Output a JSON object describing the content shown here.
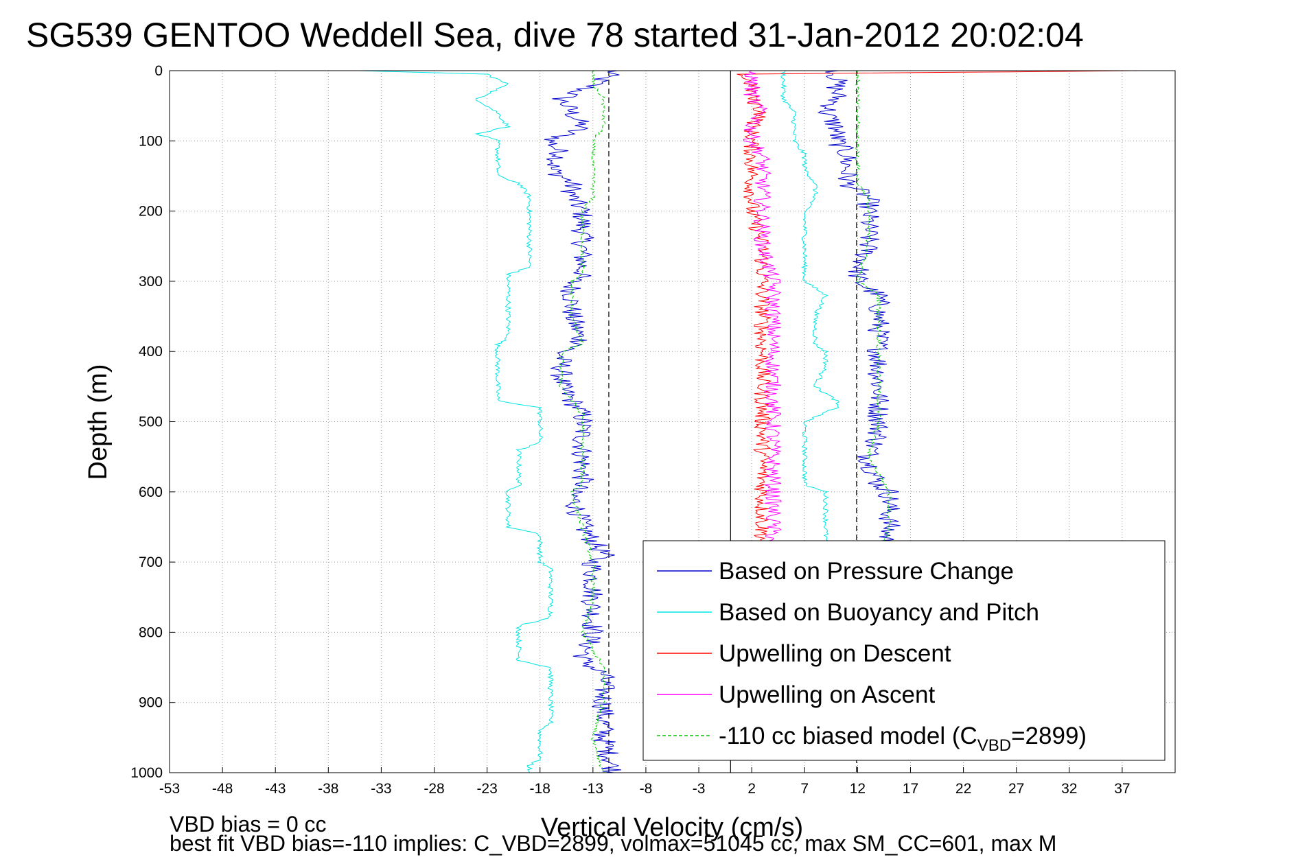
{
  "chart_data": {
    "type": "line",
    "title": "SG539 GENTOO Weddell Sea, dive 78 started 31-Jan-2012 20:02:04",
    "xlabel": "Vertical Velocity (cm/s)",
    "ylabel": "Depth (m)",
    "xlim": [
      -53,
      42
    ],
    "ylim": [
      1000,
      0
    ],
    "y_reversed": true,
    "grid": true,
    "x_ticks": [
      -53,
      -48,
      -43,
      -38,
      -33,
      -28,
      -23,
      -18,
      -13,
      -8,
      -3,
      2,
      7,
      12,
      17,
      22,
      27,
      32,
      37
    ],
    "y_ticks": [
      0,
      100,
      200,
      300,
      400,
      500,
      600,
      700,
      800,
      900,
      1000
    ],
    "legend_position": "lower-right",
    "reference_lines": [
      {
        "x": -11.5,
        "style": "dashed",
        "color": "#000000"
      },
      {
        "x": 0,
        "style": "solid",
        "color": "#000000"
      },
      {
        "x": 11.9,
        "style": "dashed",
        "color": "#000000"
      }
    ],
    "series": [
      {
        "name": "Based on Pressure Change",
        "color": "#0000cc",
        "style": "solid",
        "descent": [
          [
            0,
            -11
          ],
          [
            20,
            -13
          ],
          [
            40,
            -16
          ],
          [
            60,
            -15
          ],
          [
            80,
            -14
          ],
          [
            100,
            -17
          ],
          [
            120,
            -16
          ],
          [
            140,
            -17
          ],
          [
            160,
            -15
          ],
          [
            180,
            -15
          ],
          [
            200,
            -14
          ],
          [
            250,
            -14
          ],
          [
            290,
            -14
          ],
          [
            300,
            -15
          ],
          [
            350,
            -15
          ],
          [
            390,
            -14
          ],
          [
            400,
            -16
          ],
          [
            450,
            -16
          ],
          [
            490,
            -14
          ],
          [
            500,
            -14
          ],
          [
            550,
            -14
          ],
          [
            590,
            -14
          ],
          [
            600,
            -15
          ],
          [
            650,
            -14
          ],
          [
            690,
            -12
          ],
          [
            700,
            -13
          ],
          [
            750,
            -13
          ],
          [
            800,
            -13
          ],
          [
            840,
            -14
          ],
          [
            860,
            -12
          ],
          [
            900,
            -12
          ],
          [
            950,
            -12
          ],
          [
            1000,
            -11
          ]
        ],
        "ascent": [
          [
            0,
            10
          ],
          [
            20,
            10
          ],
          [
            40,
            10
          ],
          [
            60,
            9
          ],
          [
            80,
            10
          ],
          [
            100,
            10
          ],
          [
            120,
            11
          ],
          [
            140,
            11
          ],
          [
            160,
            11
          ],
          [
            180,
            13
          ],
          [
            200,
            13
          ],
          [
            250,
            13
          ],
          [
            290,
            12
          ],
          [
            300,
            12
          ],
          [
            320,
            14
          ],
          [
            350,
            14
          ],
          [
            390,
            14
          ],
          [
            420,
            14
          ],
          [
            450,
            14
          ],
          [
            490,
            14
          ],
          [
            500,
            14
          ],
          [
            520,
            14
          ],
          [
            550,
            13
          ],
          [
            590,
            14
          ],
          [
            600,
            15
          ],
          [
            620,
            15
          ],
          [
            650,
            15
          ],
          [
            700,
            14
          ]
        ]
      },
      {
        "name": "Based on Buoyancy and Pitch",
        "color": "#00e5e5",
        "style": "solid",
        "descent": [
          [
            0,
            -35
          ],
          [
            5,
            -23
          ],
          [
            20,
            -21
          ],
          [
            40,
            -24
          ],
          [
            60,
            -22
          ],
          [
            80,
            -21
          ],
          [
            90,
            -24
          ],
          [
            100,
            -22
          ],
          [
            120,
            -22
          ],
          [
            150,
            -22
          ],
          [
            160,
            -20
          ],
          [
            180,
            -19
          ],
          [
            200,
            -19
          ],
          [
            250,
            -19
          ],
          [
            280,
            -19
          ],
          [
            290,
            -21
          ],
          [
            300,
            -21
          ],
          [
            350,
            -21
          ],
          [
            380,
            -21
          ],
          [
            390,
            -22
          ],
          [
            400,
            -22
          ],
          [
            450,
            -22
          ],
          [
            470,
            -22
          ],
          [
            480,
            -18
          ],
          [
            500,
            -18
          ],
          [
            530,
            -18
          ],
          [
            540,
            -20
          ],
          [
            550,
            -20
          ],
          [
            590,
            -20
          ],
          [
            600,
            -21
          ],
          [
            650,
            -21
          ],
          [
            660,
            -18
          ],
          [
            700,
            -18
          ],
          [
            710,
            -17
          ],
          [
            750,
            -17
          ],
          [
            780,
            -17
          ],
          [
            790,
            -20
          ],
          [
            820,
            -20
          ],
          [
            840,
            -20
          ],
          [
            850,
            -17
          ],
          [
            880,
            -17
          ],
          [
            900,
            -17
          ],
          [
            930,
            -17
          ],
          [
            940,
            -18
          ],
          [
            980,
            -18
          ],
          [
            990,
            -19
          ],
          [
            1000,
            -19
          ]
        ],
        "ascent": [
          [
            0,
            5
          ],
          [
            20,
            5
          ],
          [
            40,
            5
          ],
          [
            60,
            6
          ],
          [
            80,
            6
          ],
          [
            100,
            6
          ],
          [
            120,
            7
          ],
          [
            140,
            7
          ],
          [
            160,
            8
          ],
          [
            180,
            8
          ],
          [
            200,
            7
          ],
          [
            250,
            7
          ],
          [
            290,
            7
          ],
          [
            300,
            7
          ],
          [
            320,
            9
          ],
          [
            350,
            8
          ],
          [
            390,
            8
          ],
          [
            400,
            9
          ],
          [
            420,
            9
          ],
          [
            450,
            8
          ],
          [
            470,
            10
          ],
          [
            480,
            10
          ],
          [
            500,
            7
          ],
          [
            520,
            7
          ],
          [
            550,
            7
          ],
          [
            590,
            7
          ],
          [
            600,
            9
          ],
          [
            650,
            9
          ],
          [
            680,
            9
          ]
        ]
      },
      {
        "name": "Upwelling on Descent",
        "color": "#ff0000",
        "style": "solid",
        "descent": [
          [
            0,
            38
          ],
          [
            5,
            1
          ],
          [
            20,
            2
          ],
          [
            40,
            2
          ],
          [
            60,
            3
          ],
          [
            80,
            2
          ],
          [
            100,
            2
          ],
          [
            120,
            2
          ],
          [
            140,
            2
          ],
          [
            160,
            2
          ],
          [
            180,
            2
          ],
          [
            200,
            2
          ],
          [
            250,
            3
          ],
          [
            300,
            3
          ],
          [
            350,
            3
          ],
          [
            400,
            3
          ],
          [
            450,
            3
          ],
          [
            500,
            3
          ],
          [
            550,
            3
          ],
          [
            600,
            3
          ],
          [
            650,
            3
          ],
          [
            680,
            3
          ]
        ]
      },
      {
        "name": "Upwelling on Ascent",
        "color": "#ff00ff",
        "style": "solid",
        "ascent": [
          [
            0,
            2
          ],
          [
            20,
            2
          ],
          [
            40,
            2
          ],
          [
            60,
            3
          ],
          [
            80,
            2
          ],
          [
            100,
            2
          ],
          [
            120,
            3
          ],
          [
            140,
            3
          ],
          [
            160,
            3
          ],
          [
            180,
            3
          ],
          [
            200,
            3
          ],
          [
            250,
            3
          ],
          [
            300,
            4
          ],
          [
            350,
            4
          ],
          [
            400,
            4
          ],
          [
            450,
            4
          ],
          [
            500,
            4
          ],
          [
            550,
            4
          ],
          [
            600,
            4
          ],
          [
            650,
            4
          ],
          [
            680,
            4
          ]
        ]
      },
      {
        "name": "-110 cc biased model (C",
        "name_subscript": "VBD",
        "name_suffix": "=2899)",
        "color": "#00cc00",
        "style": "dashed",
        "descent": [
          [
            0,
            -13
          ],
          [
            20,
            -13
          ],
          [
            40,
            -12
          ],
          [
            60,
            -12
          ],
          [
            80,
            -12
          ],
          [
            100,
            -13
          ],
          [
            120,
            -13
          ],
          [
            140,
            -13
          ],
          [
            160,
            -13
          ],
          [
            180,
            -13
          ],
          [
            200,
            -14
          ],
          [
            250,
            -14
          ],
          [
            290,
            -14
          ],
          [
            300,
            -15
          ],
          [
            350,
            -15
          ],
          [
            390,
            -14
          ],
          [
            400,
            -16
          ],
          [
            450,
            -16
          ],
          [
            490,
            -14
          ],
          [
            500,
            -14
          ],
          [
            550,
            -14
          ],
          [
            590,
            -14
          ],
          [
            600,
            -15
          ],
          [
            650,
            -14
          ],
          [
            700,
            -13
          ],
          [
            750,
            -13
          ],
          [
            800,
            -14
          ],
          [
            850,
            -12
          ],
          [
            900,
            -12
          ],
          [
            950,
            -13
          ],
          [
            1000,
            -12
          ]
        ],
        "ascent": [
          [
            0,
            12
          ],
          [
            20,
            12
          ],
          [
            40,
            12
          ],
          [
            60,
            12
          ],
          [
            80,
            12
          ],
          [
            100,
            12
          ],
          [
            120,
            12
          ],
          [
            140,
            12
          ],
          [
            160,
            12
          ],
          [
            180,
            13
          ],
          [
            200,
            13
          ],
          [
            250,
            13
          ],
          [
            300,
            12
          ],
          [
            320,
            14
          ],
          [
            350,
            14
          ],
          [
            400,
            14
          ],
          [
            450,
            14
          ],
          [
            500,
            14
          ],
          [
            550,
            13
          ],
          [
            600,
            15
          ],
          [
            650,
            15
          ],
          [
            700,
            14
          ]
        ]
      }
    ]
  },
  "footer": {
    "vbd_bias": "VBD bias = 0 cc",
    "best_fit": "best fit VBD bias=-110 implies: C_VBD=2899, volmax=51045 cc, max SM_CC=601, max M"
  }
}
